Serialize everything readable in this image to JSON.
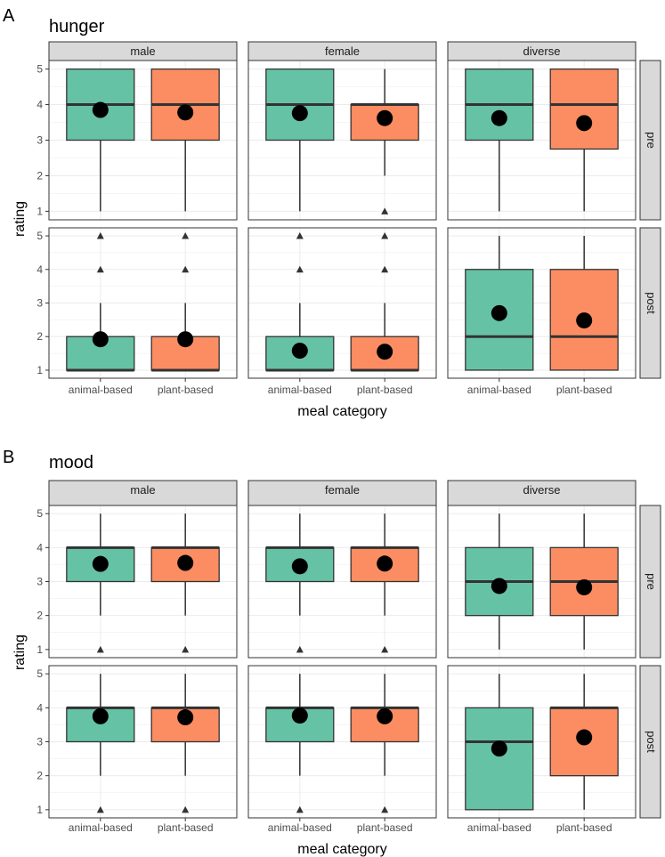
{
  "figure": {
    "colors": {
      "animal": "#66c2a5",
      "plant": "#fc8d62",
      "strip_bg": "#d9d9d9",
      "grid": "#ebebeb",
      "border": "#333333",
      "point": "#000000"
    }
  },
  "chart_data": [
    {
      "type": "box",
      "panel_label": "A",
      "title": "hunger",
      "xlabel": "meal category",
      "ylabel": "rating",
      "ylim": [
        1,
        5
      ],
      "yticks": [
        1,
        2,
        3,
        4,
        5
      ],
      "categories": [
        "animal-based",
        "plant-based"
      ],
      "columns": [
        "male",
        "female",
        "diverse"
      ],
      "rows": [
        "pre",
        "post"
      ],
      "panels": [
        [
          [
            {
              "q1": 3,
              "median": 4,
              "q3": 5,
              "lo": 1,
              "hi": 5,
              "mean": 3.85,
              "outliers": []
            },
            {
              "q1": 3,
              "median": 4,
              "q3": 5,
              "lo": 1,
              "hi": 5,
              "mean": 3.78,
              "outliers": []
            }
          ],
          [
            {
              "q1": 3,
              "median": 4,
              "q3": 5,
              "lo": 1,
              "hi": 5,
              "mean": 3.76,
              "outliers": []
            },
            {
              "q1": 3,
              "median": 4,
              "q3": 4,
              "lo": 2,
              "hi": 5,
              "mean": 3.62,
              "outliers": [
                1
              ]
            }
          ],
          [
            {
              "q1": 3,
              "median": 4,
              "q3": 5,
              "lo": 1,
              "hi": 5,
              "mean": 3.62,
              "outliers": []
            },
            {
              "q1": 2.75,
              "median": 4,
              "q3": 5,
              "lo": 1,
              "hi": 5,
              "mean": 3.48,
              "outliers": []
            }
          ]
        ],
        [
          [
            {
              "q1": 1,
              "median": 1,
              "q3": 2,
              "lo": 1,
              "hi": 3,
              "mean": 1.92,
              "outliers": [
                4,
                5
              ]
            },
            {
              "q1": 1,
              "median": 1,
              "q3": 2,
              "lo": 1,
              "hi": 3,
              "mean": 1.92,
              "outliers": [
                4,
                5
              ]
            }
          ],
          [
            {
              "q1": 1,
              "median": 1,
              "q3": 2,
              "lo": 1,
              "hi": 3,
              "mean": 1.58,
              "outliers": [
                4,
                5
              ]
            },
            {
              "q1": 1,
              "median": 1,
              "q3": 2,
              "lo": 1,
              "hi": 3,
              "mean": 1.55,
              "outliers": [
                4,
                5
              ]
            }
          ],
          [
            {
              "q1": 1,
              "median": 2,
              "q3": 4,
              "lo": 1,
              "hi": 5,
              "mean": 2.7,
              "outliers": []
            },
            {
              "q1": 1,
              "median": 2,
              "q3": 4,
              "lo": 1,
              "hi": 5,
              "mean": 2.48,
              "outliers": []
            }
          ]
        ]
      ]
    },
    {
      "type": "box",
      "panel_label": "B",
      "title": "mood",
      "xlabel": "meal category",
      "ylabel": "rating",
      "ylim": [
        1,
        5
      ],
      "yticks": [
        1,
        2,
        3,
        4,
        5
      ],
      "categories": [
        "animal-based",
        "plant-based"
      ],
      "columns": [
        "male",
        "female",
        "diverse"
      ],
      "rows": [
        "pre",
        "post"
      ],
      "panels": [
        [
          [
            {
              "q1": 3,
              "median": 4,
              "q3": 4,
              "lo": 2,
              "hi": 5,
              "mean": 3.52,
              "outliers": [
                1
              ]
            },
            {
              "q1": 3,
              "median": 4,
              "q3": 4,
              "lo": 2,
              "hi": 5,
              "mean": 3.55,
              "outliers": [
                1
              ]
            }
          ],
          [
            {
              "q1": 3,
              "median": 4,
              "q3": 4,
              "lo": 2,
              "hi": 5,
              "mean": 3.45,
              "outliers": [
                1
              ]
            },
            {
              "q1": 3,
              "median": 4,
              "q3": 4,
              "lo": 2,
              "hi": 5,
              "mean": 3.53,
              "outliers": [
                1
              ]
            }
          ],
          [
            {
              "q1": 2,
              "median": 3,
              "q3": 4,
              "lo": 1,
              "hi": 5,
              "mean": 2.87,
              "outliers": []
            },
            {
              "q1": 2,
              "median": 3,
              "q3": 4,
              "lo": 1,
              "hi": 5,
              "mean": 2.83,
              "outliers": []
            }
          ]
        ],
        [
          [
            {
              "q1": 3,
              "median": 4,
              "q3": 4,
              "lo": 2,
              "hi": 5,
              "mean": 3.75,
              "outliers": [
                1
              ]
            },
            {
              "q1": 3,
              "median": 4,
              "q3": 4,
              "lo": 2,
              "hi": 5,
              "mean": 3.72,
              "outliers": [
                1
              ]
            }
          ],
          [
            {
              "q1": 3,
              "median": 4,
              "q3": 4,
              "lo": 2,
              "hi": 5,
              "mean": 3.77,
              "outliers": [
                1
              ]
            },
            {
              "q1": 3,
              "median": 4,
              "q3": 4,
              "lo": 2,
              "hi": 5,
              "mean": 3.75,
              "outliers": [
                1
              ]
            }
          ],
          [
            {
              "q1": 1,
              "median": 3,
              "q3": 4,
              "lo": 1,
              "hi": 5,
              "mean": 2.8,
              "outliers": []
            },
            {
              "q1": 2,
              "median": 4,
              "q3": 4,
              "lo": 1,
              "hi": 5,
              "mean": 3.13,
              "outliers": []
            }
          ]
        ]
      ]
    }
  ]
}
